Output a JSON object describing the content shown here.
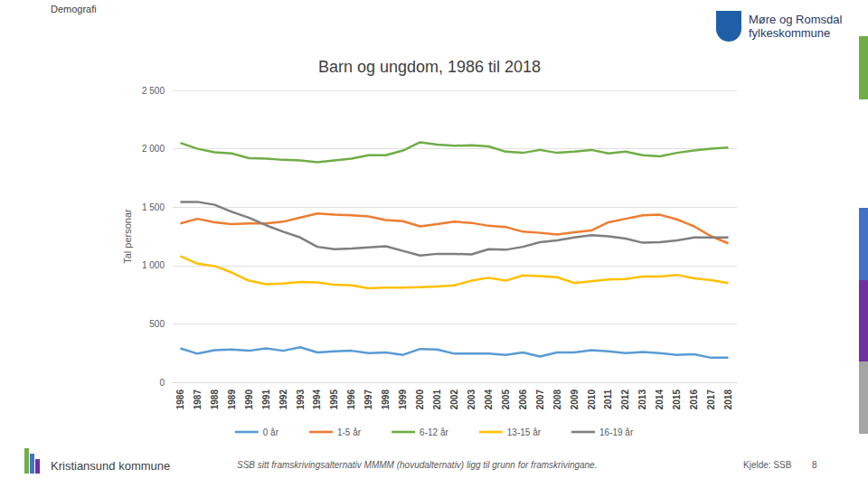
{
  "page": {
    "section": "Demografi",
    "organisation": "Møre og Romsdal\nfylkeskommune",
    "footer": "Kristiansund kommune",
    "note": "SSB sitt framskrivingsalternativ MMMM (hovudalternativ) ligg til grunn for framskrivingane.",
    "source": "Kjelde: SSB",
    "page_number": "8"
  },
  "chart_data": {
    "type": "line",
    "title": "Barn og ungdom, 1986 til 2018",
    "y_label": "Tal personar",
    "categories": [
      "1986",
      "1987",
      "1988",
      "1989",
      "1990",
      "1991",
      "1992",
      "1993",
      "1994",
      "1995",
      "1996",
      "1997",
      "1998",
      "1999",
      "2000",
      "2001",
      "2002",
      "2003",
      "2004",
      "2005",
      "2006",
      "2007",
      "2008",
      "2009",
      "2010",
      "2011",
      "2012",
      "2013",
      "2014",
      "2015",
      "2016",
      "2017",
      "2018"
    ],
    "series": [
      {
        "name": "0 år",
        "color": "#5b9bd5",
        "values": [
          290,
          245,
          275,
          280,
          270,
          290,
          270,
          300,
          255,
          265,
          270,
          250,
          255,
          235,
          285,
          280,
          245,
          245,
          245,
          235,
          255,
          220,
          255,
          255,
          275,
          265,
          250,
          260,
          250,
          235,
          240,
          210,
          210
        ]
      },
      {
        "name": "1-5 år",
        "color": "#ed7d31",
        "values": [
          1360,
          1400,
          1370,
          1355,
          1360,
          1360,
          1375,
          1410,
          1445,
          1435,
          1430,
          1420,
          1390,
          1380,
          1335,
          1355,
          1375,
          1365,
          1340,
          1330,
          1290,
          1280,
          1265,
          1285,
          1300,
          1370,
          1400,
          1430,
          1435,
          1395,
          1335,
          1250,
          1190
        ]
      },
      {
        "name": "6-12 år",
        "color": "#70ad47",
        "values": [
          2050,
          2000,
          1970,
          1960,
          1920,
          1915,
          1905,
          1900,
          1885,
          1900,
          1915,
          1945,
          1945,
          1985,
          2055,
          2035,
          2025,
          2030,
          2020,
          1975,
          1965,
          1990,
          1965,
          1975,
          1990,
          1960,
          1975,
          1945,
          1935,
          1965,
          1985,
          2000,
          2010
        ]
      },
      {
        "name": "13-15 år",
        "color": "#ffc000",
        "values": [
          1080,
          1015,
          995,
          940,
          870,
          840,
          845,
          860,
          855,
          835,
          830,
          805,
          810,
          810,
          815,
          820,
          830,
          870,
          895,
          870,
          915,
          910,
          900,
          850,
          865,
          880,
          885,
          905,
          905,
          920,
          890,
          875,
          850
        ]
      },
      {
        "name": "16-19 år",
        "color": "#7f7f7f",
        "values": [
          1545,
          1545,
          1520,
          1460,
          1410,
          1345,
          1290,
          1240,
          1160,
          1140,
          1145,
          1155,
          1165,
          1125,
          1085,
          1100,
          1100,
          1095,
          1140,
          1135,
          1160,
          1200,
          1215,
          1240,
          1260,
          1250,
          1230,
          1195,
          1200,
          1215,
          1240,
          1240,
          1240
        ]
      }
    ],
    "ylim": [
      0,
      2500
    ],
    "yticks": [
      0,
      500,
      {
        "value": 1000,
        "label": "1 000"
      },
      {
        "value": 1500,
        "label": "1 500"
      },
      {
        "value": 2000,
        "label": "2 000"
      },
      {
        "value": 2500,
        "label": "2 500"
      }
    ],
    "grid": true,
    "legend": "bottom"
  }
}
